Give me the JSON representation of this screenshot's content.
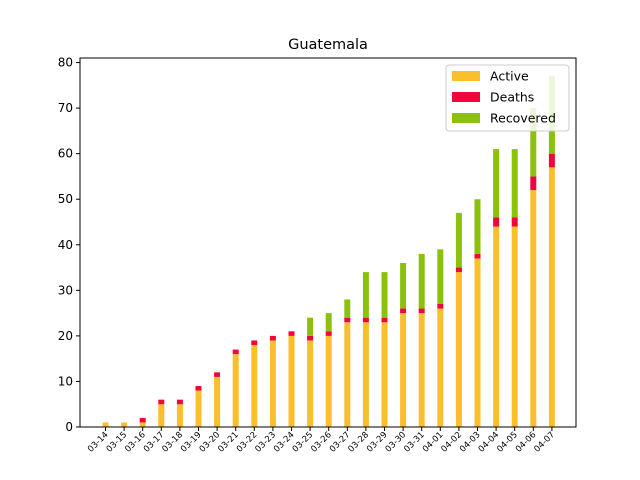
{
  "chart_data": {
    "type": "bar",
    "stacked": true,
    "title": "Guatemala",
    "xlabel": "",
    "ylabel": "",
    "ylim": [
      0,
      81
    ],
    "yticks": [
      0,
      10,
      20,
      30,
      40,
      50,
      60,
      70,
      80
    ],
    "grid": false,
    "legend": "top-right",
    "categories": [
      "03-14",
      "03-15",
      "03-16",
      "03-17",
      "03-18",
      "03-19",
      "03-20",
      "03-21",
      "03-22",
      "03-23",
      "03-24",
      "03-25",
      "03-26",
      "03-27",
      "03-28",
      "03-29",
      "03-30",
      "03-31",
      "04-01",
      "04-02",
      "04-03",
      "04-04",
      "04-05",
      "04-06",
      "04-07"
    ],
    "series": [
      {
        "name": "Active",
        "color": "#fbbf2d",
        "values": [
          1,
          1,
          1,
          5,
          5,
          8,
          11,
          16,
          18,
          19,
          20,
          19,
          20,
          23,
          23,
          23,
          25,
          25,
          26,
          34,
          37,
          44,
          44,
          52,
          57
        ]
      },
      {
        "name": "Deaths",
        "color": "#f0063d",
        "values": [
          0,
          0,
          1,
          1,
          1,
          1,
          1,
          1,
          1,
          1,
          1,
          1,
          1,
          1,
          1,
          1,
          1,
          1,
          1,
          1,
          1,
          2,
          2,
          3,
          3
        ]
      },
      {
        "name": "Recovered",
        "color": "#8cc10b",
        "values": [
          0,
          0,
          0,
          0,
          0,
          0,
          0,
          0,
          0,
          0,
          0,
          4,
          4,
          4,
          10,
          10,
          10,
          12,
          12,
          12,
          12,
          15,
          15,
          15,
          17
        ]
      }
    ]
  }
}
